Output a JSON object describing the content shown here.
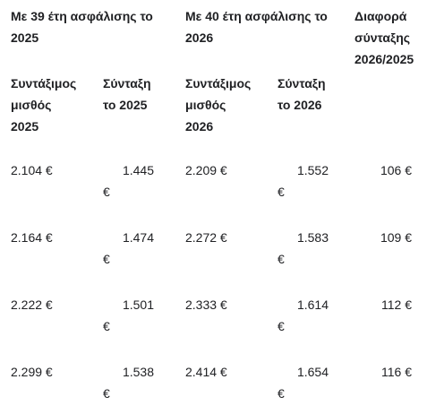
{
  "headers": {
    "group_2025": [
      "Με 39 έτη ασφάλισης  το",
      "2025"
    ],
    "group_2026": [
      "Με 40 έτη ασφάλισης το",
      "2026"
    ],
    "difference": [
      "Διαφορά",
      "σύνταξης",
      "2026/2025"
    ],
    "salary_2025": [
      "Συντάξιμος",
      "μισθός",
      "2025"
    ],
    "pension_2025": [
      "Σύνταξη",
      "το 2025"
    ],
    "salary_2026": [
      "Συντάξιμος",
      "μισθός",
      "2026"
    ],
    "pension_2026": [
      "Σύνταξη",
      "το 2026"
    ]
  },
  "rows": [
    {
      "salary_2025": "2.104 €",
      "pension_2025": "1.445",
      "salary_2026": "2.209 €",
      "pension_2026": "1.552",
      "difference": "106 €",
      "euro": "€"
    },
    {
      "salary_2025": "2.164 €",
      "pension_2025": "1.474",
      "salary_2026": "2.272 €",
      "pension_2026": "1.583",
      "difference": "109 €",
      "euro": "€"
    },
    {
      "salary_2025": "2.222 €",
      "pension_2025": "1.501",
      "salary_2026": "2.333 €",
      "pension_2026": "1.614",
      "difference": "112 €",
      "euro": "€"
    },
    {
      "salary_2025": "2.299 €",
      "pension_2025": "1.538",
      "salary_2026": "2.414 €",
      "pension_2026": "1.654",
      "difference": "116 €",
      "euro": "€"
    }
  ]
}
